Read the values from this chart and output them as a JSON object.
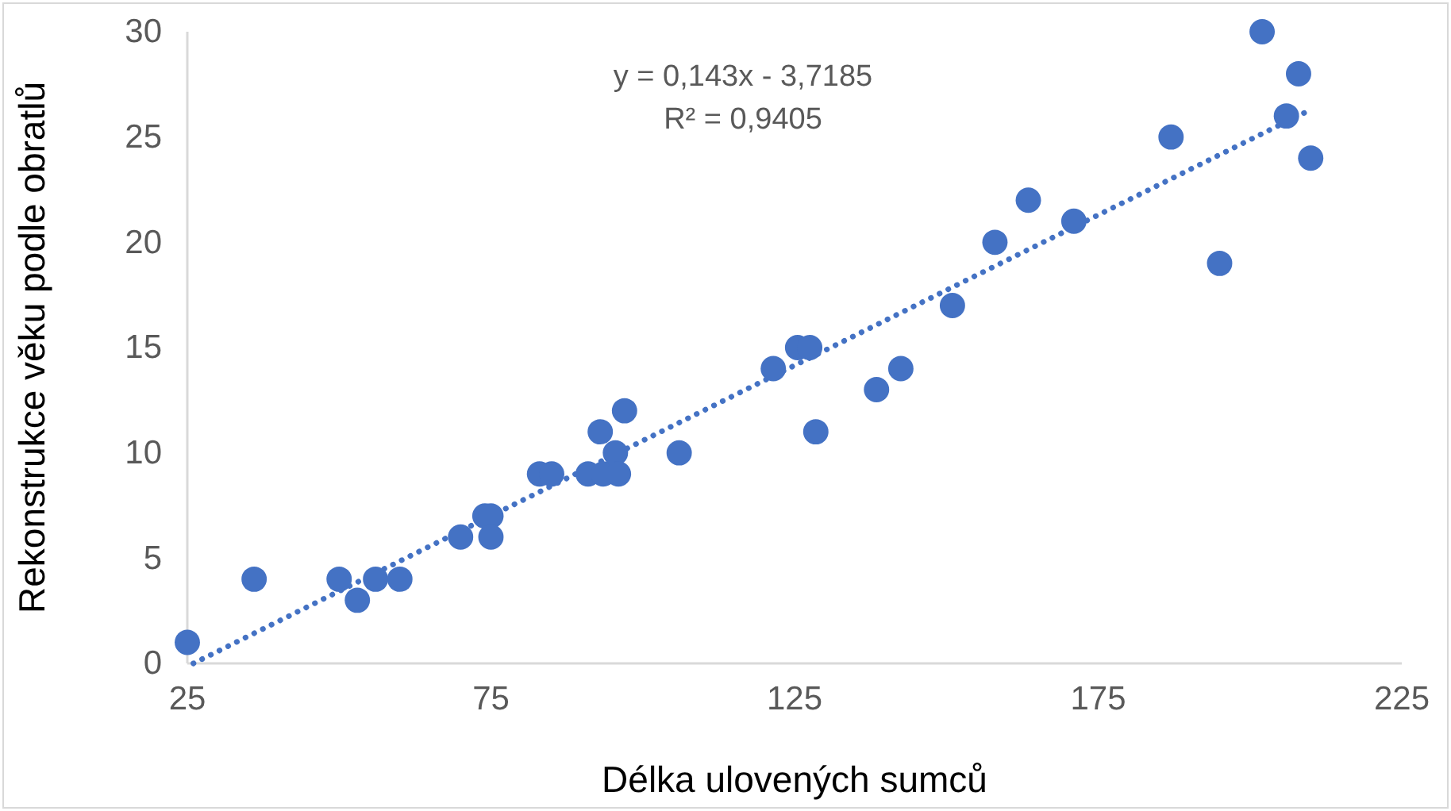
{
  "chart_data": {
    "type": "scatter",
    "xlabel": "Délka ulovených sumců",
    "ylabel": "Rekonstrukce věku podle obratlů",
    "xlim": [
      25,
      225
    ],
    "xticks": [
      25,
      75,
      125,
      175,
      225
    ],
    "ylim": [
      0,
      30
    ],
    "yticks": [
      0,
      5,
      10,
      15,
      20,
      25,
      30
    ],
    "grid": false,
    "annotations": [
      {
        "text": "y = 0,143x - 3,7185"
      },
      {
        "text": "R² = 0,9405"
      }
    ],
    "series": [
      {
        "color": "#4472c4",
        "marker": "circle",
        "x": [
          25,
          36,
          50,
          53,
          56,
          60,
          70,
          74,
          75,
          75,
          83,
          85,
          91,
          93,
          93.5,
          95.5,
          96,
          97,
          106,
          121.5,
          125.5,
          127.5,
          128.5,
          138.5,
          142.5,
          151,
          158,
          163.5,
          171,
          187,
          195,
          202,
          206,
          208,
          210
        ],
        "values": [
          1,
          4,
          4,
          3,
          4,
          4,
          6,
          7,
          7,
          6,
          9,
          9,
          9,
          11,
          9,
          10,
          9,
          12,
          10,
          14,
          15,
          15,
          11,
          13,
          14,
          17,
          20,
          22,
          21,
          25,
          19,
          30,
          26,
          28,
          24
        ]
      },
      {
        "type": "line",
        "color": "#4472c4",
        "line_style": "dotted",
        "marker": "none",
        "x": [
          26,
          210
        ],
        "values": [
          0,
          26.3
        ]
      }
    ]
  }
}
